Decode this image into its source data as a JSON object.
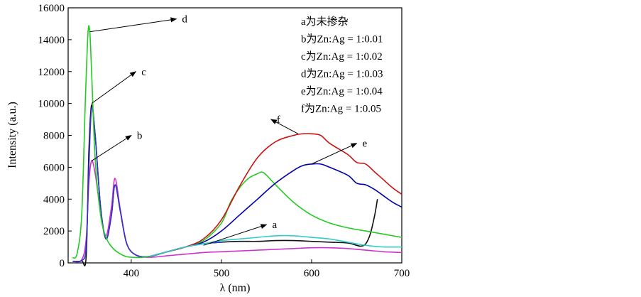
{
  "chart_data": {
    "type": "line",
    "xlabel": "λ (nm)",
    "ylabel": "Intensity (a.u.)",
    "xlim": [
      330,
      700
    ],
    "ylim": [
      0,
      16000
    ],
    "x_ticks": [
      "400",
      "500",
      "600",
      "700"
    ],
    "x_tick_values": [
      400,
      500,
      600,
      700
    ],
    "y_ticks": [
      "0",
      "2000",
      "4000",
      "6000",
      "8000",
      "10000",
      "12000",
      "14000",
      "16000"
    ],
    "y_tick_values": [
      0,
      2000,
      4000,
      6000,
      8000,
      10000,
      12000,
      14000,
      16000
    ],
    "legend_placement": "top-right",
    "legend": [
      "a为未掺杂",
      "b为Zn:Ag = 1:0.01",
      "c为Zn:Ag = 1:0.02",
      "d为Zn:Ag = 1:0.03",
      "e为Zn:Ag = 1:0.04",
      "f为Zn:Ag = 1:0.05"
    ],
    "series": [
      {
        "label": "a",
        "color": "#111111",
        "x": [
          335,
          345,
          350,
          353,
          356,
          360,
          366,
          372,
          378,
          382,
          388,
          395,
          405,
          420,
          440,
          460,
          480,
          500,
          520,
          540,
          560,
          580,
          600,
          620,
          640,
          650,
          655,
          660,
          665,
          670,
          673
        ],
        "y": [
          100,
          120,
          400,
          7000,
          9900,
          8000,
          3500,
          1500,
          3000,
          4900,
          3200,
          1200,
          500,
          400,
          700,
          1000,
          1200,
          1300,
          1350,
          1350,
          1400,
          1400,
          1350,
          1300,
          1250,
          1100,
          1050,
          1200,
          1800,
          3000,
          4000
        ]
      },
      {
        "label": "b",
        "color": "#cc33cc",
        "x": [
          335,
          345,
          350,
          353,
          356,
          360,
          366,
          372,
          378,
          382,
          388,
          395,
          405,
          420,
          440,
          460,
          480,
          500,
          520,
          540,
          560,
          580,
          600,
          620,
          640,
          660,
          680,
          700
        ],
        "y": [
          100,
          200,
          1500,
          5000,
          6400,
          5600,
          3200,
          1700,
          3500,
          5300,
          3300,
          1200,
          500,
          350,
          450,
          550,
          650,
          700,
          750,
          800,
          850,
          900,
          950,
          950,
          900,
          800,
          700,
          650
        ]
      },
      {
        "label": "c",
        "color": "#3333cc",
        "x": [
          335,
          345,
          350,
          353,
          356,
          360,
          366,
          372,
          378,
          382,
          388,
          395,
          405,
          420,
          440,
          460,
          480,
          500
        ],
        "y": [
          100,
          150,
          1000,
          6000,
          9700,
          8000,
          3500,
          1500,
          3000,
          4900,
          3200,
          1200,
          500,
          400,
          700,
          1000,
          1200,
          1300
        ]
      },
      {
        "label": "d",
        "color": "#22cc22",
        "x": [
          335,
          340,
          345,
          349,
          352,
          354,
          356,
          360,
          366,
          372,
          380,
          390,
          400,
          420,
          440,
          460,
          480,
          500,
          510,
          520,
          530,
          540,
          545,
          550,
          560,
          580,
          600,
          620,
          640,
          660,
          680,
          700
        ],
        "y": [
          300,
          600,
          3000,
          10000,
          14400,
          14500,
          12000,
          6500,
          3000,
          1600,
          900,
          500,
          350,
          400,
          700,
          1000,
          1400,
          2500,
          3800,
          4700,
          5300,
          5600,
          5700,
          5500,
          4900,
          3800,
          3000,
          2500,
          2200,
          2000,
          1800,
          1600
        ]
      },
      {
        "label": "e",
        "color": "#0000aa",
        "x": [
          420,
          440,
          460,
          480,
          500,
          520,
          540,
          560,
          580,
          590,
          600,
          610,
          620,
          640,
          650,
          660,
          670,
          680,
          690,
          700
        ],
        "y": [
          400,
          700,
          1000,
          1300,
          2000,
          3000,
          4000,
          5000,
          5800,
          6100,
          6200,
          6200,
          6000,
          5500,
          5000,
          4900,
          4600,
          4200,
          3800,
          3500
        ]
      },
      {
        "label": "f",
        "color": "#cc1111",
        "x": [
          420,
          440,
          460,
          480,
          500,
          520,
          540,
          560,
          580,
          590,
          600,
          610,
          620,
          640,
          650,
          660,
          670,
          680,
          690,
          700
        ],
        "y": [
          400,
          700,
          1000,
          1500,
          2700,
          4800,
          6600,
          7600,
          8000,
          8100,
          8100,
          8000,
          7500,
          6800,
          6300,
          6200,
          5700,
          5200,
          4700,
          4300
        ]
      },
      {
        "label": "",
        "color": "#33cccc",
        "x": [
          420,
          440,
          460,
          480,
          500,
          520,
          540,
          560,
          580,
          600,
          620,
          640,
          660,
          680,
          700
        ],
        "y": [
          400,
          700,
          1000,
          1200,
          1400,
          1500,
          1600,
          1700,
          1700,
          1600,
          1500,
          1300,
          1100,
          1000,
          1000
        ]
      }
    ],
    "annotations": [
      {
        "text": "a",
        "from": [
          480,
          1100
        ],
        "to": [
          550,
          2400
        ]
      },
      {
        "text": "b",
        "from": [
          356,
          6400
        ],
        "to": [
          400,
          8000
        ]
      },
      {
        "text": "c",
        "from": [
          356,
          10000
        ],
        "to": [
          405,
          12000
        ]
      },
      {
        "text": "d",
        "from": [
          354,
          14500
        ],
        "to": [
          450,
          15300
        ]
      },
      {
        "text": "e",
        "from": [
          600,
          6200
        ],
        "to": [
          650,
          7500
        ]
      },
      {
        "text": "f",
        "from": [
          585,
          8100
        ],
        "to": [
          555,
          9000
        ]
      }
    ]
  }
}
